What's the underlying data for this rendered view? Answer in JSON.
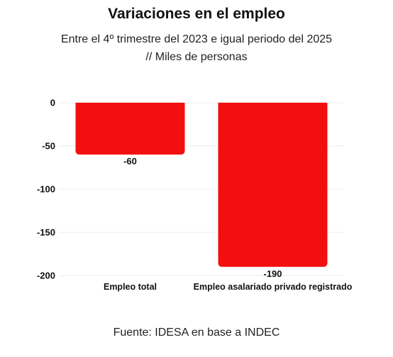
{
  "chart_data": {
    "type": "bar",
    "title": "Variaciones en el empleo",
    "subtitle_line1": "Entre el 4º trimestre del 2023 e igual periodo del 2025",
    "subtitle_line2": "// Miles de personas",
    "categories": [
      "Empleo total",
      "Empleo asalariado privado registrado"
    ],
    "values": [
      -60,
      -190
    ],
    "value_labels": [
      "-60",
      "-190"
    ],
    "ylim": [
      -200,
      0
    ],
    "yticks": [
      0,
      -50,
      -100,
      -150,
      -200
    ],
    "ytick_labels": [
      "0",
      "-50",
      "-100",
      "-150",
      "-200"
    ],
    "grid": true,
    "bar_color": "#f20f0f",
    "source": "Fuente: IDESA en base a INDEC"
  }
}
